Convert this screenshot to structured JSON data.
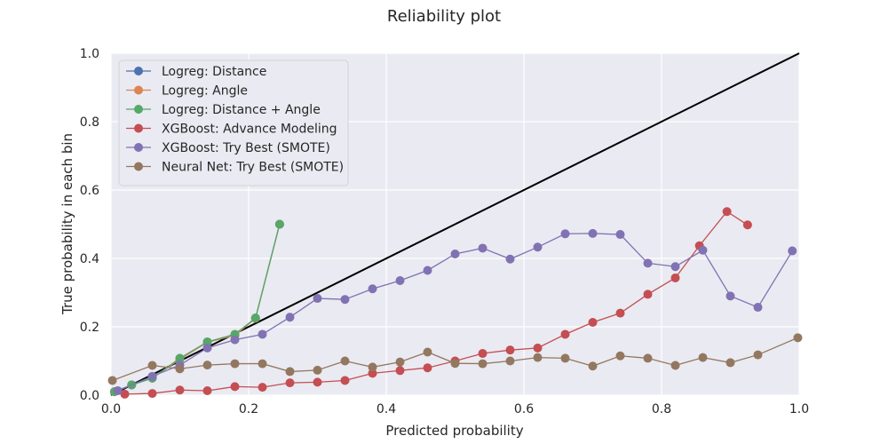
{
  "chart_data": {
    "type": "line",
    "title": "Reliability plot",
    "xlabel": "Predicted probability",
    "ylabel": "True probability in each bin",
    "xlim": [
      0,
      1
    ],
    "ylim": [
      0,
      1
    ],
    "x_ticks": [
      "0.0",
      "0.2",
      "0.4",
      "0.6",
      "0.8",
      "1.0"
    ],
    "y_ticks": [
      "0.0",
      "0.2",
      "0.4",
      "0.6",
      "0.8",
      "1.0"
    ],
    "grid": true,
    "legend_position": "top-left",
    "reference_line": {
      "x": [
        0,
        1
      ],
      "y": [
        0,
        1
      ],
      "color": "#000000"
    },
    "series": [
      {
        "name": "Logreg: Distance",
        "color": "#4C72B0",
        "x": [
          0.005,
          0.03,
          0.06,
          0.1,
          0.14,
          0.18,
          0.21,
          0.245
        ],
        "y": [
          0.01,
          0.03,
          0.05,
          0.105,
          0.155,
          0.175,
          0.225,
          0.5
        ]
      },
      {
        "name": "Logreg: Angle",
        "color": "#DD8452",
        "x": [
          0.005,
          0.03,
          0.06,
          0.1,
          0.14,
          0.18,
          0.21,
          0.245
        ],
        "y": [
          0.01,
          0.03,
          0.05,
          0.105,
          0.155,
          0.175,
          0.225,
          0.5
        ]
      },
      {
        "name": "Logreg: Distance + Angle",
        "color": "#55A868",
        "x": [
          0.005,
          0.03,
          0.06,
          0.1,
          0.14,
          0.18,
          0.21,
          0.245
        ],
        "y": [
          0.01,
          0.03,
          0.05,
          0.108,
          0.156,
          0.178,
          0.226,
          0.5
        ]
      },
      {
        "name": "XGBoost: Advance Modeling",
        "color": "#C44E52",
        "x": [
          0.02,
          0.06,
          0.1,
          0.14,
          0.18,
          0.22,
          0.26,
          0.3,
          0.34,
          0.38,
          0.42,
          0.46,
          0.5,
          0.54,
          0.58,
          0.62,
          0.66,
          0.7,
          0.74,
          0.78,
          0.82,
          0.855,
          0.895,
          0.925
        ],
        "y": [
          0.003,
          0.005,
          0.015,
          0.013,
          0.025,
          0.023,
          0.036,
          0.038,
          0.043,
          0.064,
          0.072,
          0.08,
          0.1,
          0.122,
          0.132,
          0.138,
          0.178,
          0.213,
          0.24,
          0.295,
          0.343,
          0.437,
          0.537,
          0.498
        ]
      },
      {
        "name": "XGBoost: Try Best (SMOTE)",
        "color": "#8172B3",
        "x": [
          0.01,
          0.06,
          0.1,
          0.14,
          0.18,
          0.22,
          0.26,
          0.3,
          0.34,
          0.38,
          0.42,
          0.46,
          0.5,
          0.54,
          0.58,
          0.62,
          0.66,
          0.7,
          0.74,
          0.78,
          0.82,
          0.86,
          0.9,
          0.94,
          0.99
        ],
        "y": [
          0.013,
          0.055,
          0.088,
          0.138,
          0.162,
          0.178,
          0.228,
          0.283,
          0.28,
          0.311,
          0.335,
          0.365,
          0.413,
          0.43,
          0.398,
          0.433,
          0.472,
          0.473,
          0.47,
          0.386,
          0.376,
          0.424,
          0.29,
          0.257,
          0.422
        ]
      },
      {
        "name": "Neural Net: Try Best (SMOTE)",
        "color": "#937860",
        "x": [
          0.002,
          0.06,
          0.1,
          0.14,
          0.18,
          0.22,
          0.26,
          0.3,
          0.34,
          0.38,
          0.42,
          0.46,
          0.5,
          0.54,
          0.58,
          0.62,
          0.66,
          0.7,
          0.74,
          0.78,
          0.82,
          0.86,
          0.9,
          0.94,
          0.998
        ],
        "y": [
          0.043,
          0.087,
          0.077,
          0.088,
          0.092,
          0.092,
          0.069,
          0.073,
          0.1,
          0.082,
          0.097,
          0.126,
          0.093,
          0.092,
          0.1,
          0.11,
          0.108,
          0.085,
          0.115,
          0.108,
          0.087,
          0.11,
          0.095,
          0.118,
          0.168
        ]
      }
    ]
  }
}
